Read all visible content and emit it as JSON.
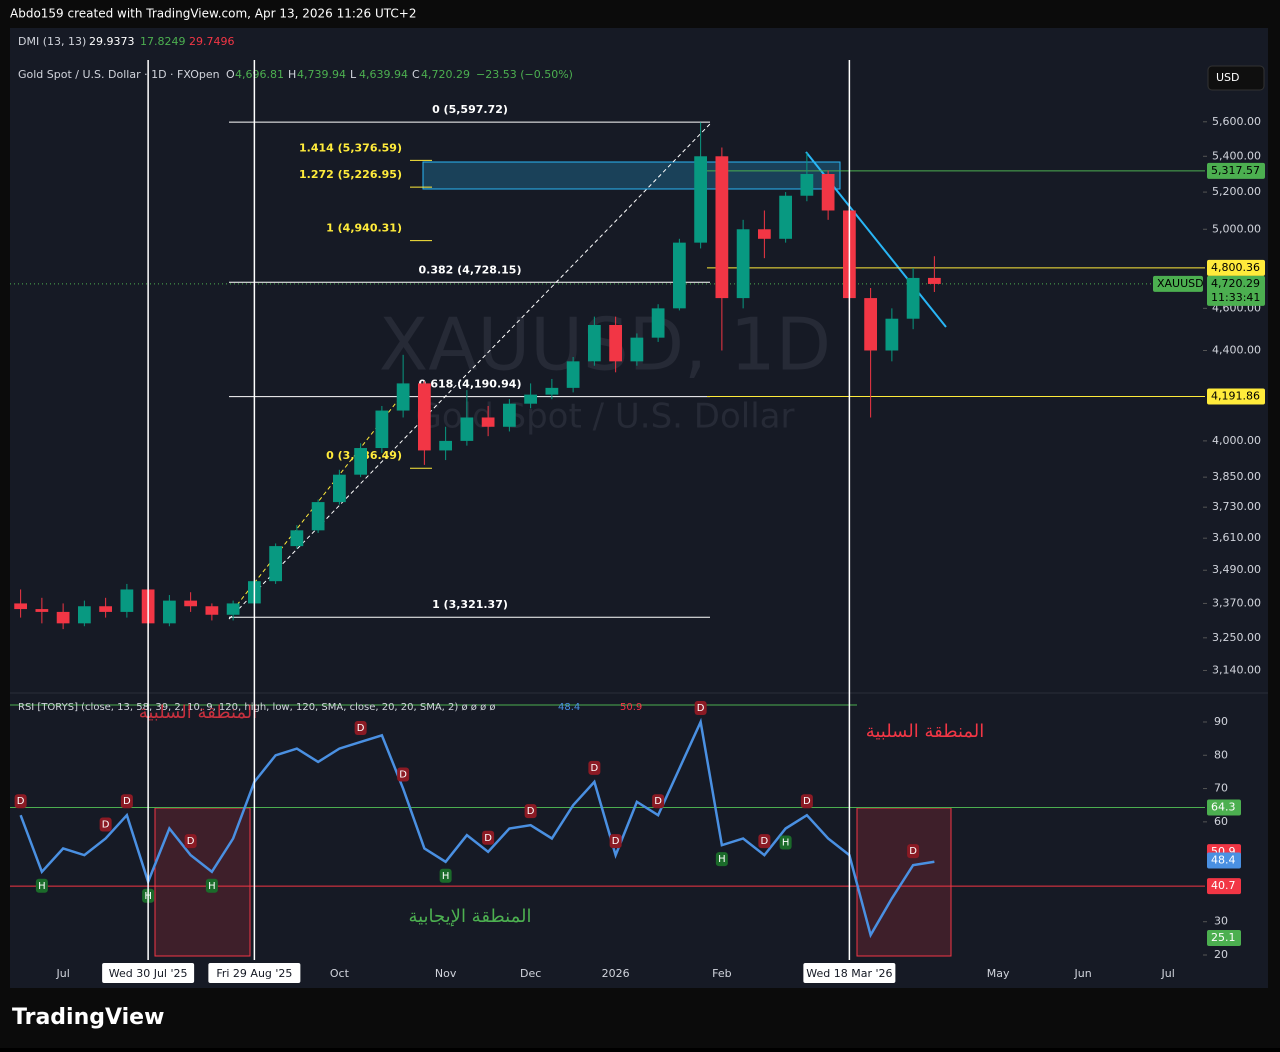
{
  "header": {
    "credit": "Abdo159 created with TradingView.com, Apr 13, 2026 11:26 UTC+2",
    "dmi": {
      "name": "DMI (13, 13)",
      "values": [
        "29.9373",
        "17.8249",
        "29.7496"
      ]
    },
    "symbol": "Gold Spot / U.S. Dollar · 1D · FXOpen",
    "ohlc": [
      {
        "k": "O",
        "v": "4,696.81"
      },
      {
        "k": "H",
        "v": "4,739.94"
      },
      {
        "k": "L",
        "v": "4,639.94"
      },
      {
        "k": "C",
        "v": "4,720.29"
      }
    ],
    "change": "−23.53 (−0.50%)",
    "currency": "USD",
    "watermark": "XAUUSD, 1D",
    "watermark_sub": "Gold Spot / U.S. Dollar"
  },
  "footer": {
    "logo": "TradingView"
  },
  "chart_data": [
    {
      "type": "candlestick",
      "log_scale": true,
      "up_color": "#089981",
      "down_color": "#f23645",
      "categories": [
        null,
        null,
        "Jul",
        null,
        null,
        null,
        "Wed 30 Jul '25",
        null,
        null,
        null,
        null,
        "Fri 29 Aug '25",
        null,
        null,
        null,
        "Oct",
        null,
        null,
        null,
        null,
        "Nov",
        null,
        null,
        null,
        "Dec",
        null,
        null,
        null,
        "2026",
        null,
        null,
        null,
        null,
        "Feb",
        null,
        null,
        null,
        null,
        null,
        "Wed 18 Mar '26",
        null,
        null,
        null,
        null,
        null,
        null,
        "May",
        null,
        null,
        null,
        "Jun",
        null,
        null,
        null,
        "Jul",
        null
      ],
      "open": [
        3370,
        3350,
        3340,
        3300,
        3360,
        3340,
        3420,
        3300,
        3380,
        3360,
        3330,
        3370,
        3450,
        3580,
        3640,
        3750,
        3860,
        3970,
        4130,
        4250,
        3960,
        4000,
        4100,
        4060,
        4160,
        4200,
        4230,
        4350,
        4520,
        4350,
        4460,
        4600,
        4930,
        5400,
        4650,
        5000,
        4950,
        5180,
        5300,
        5100,
        4650,
        4400,
        4550,
        4750,
        null,
        null,
        null,
        null,
        null,
        null,
        null,
        null,
        null,
        null,
        null,
        null
      ],
      "high": [
        3420,
        3390,
        3370,
        3380,
        3390,
        3440,
        3430,
        3400,
        3410,
        3370,
        3380,
        3460,
        3590,
        3660,
        3760,
        3880,
        3990,
        4150,
        4380,
        4260,
        4060,
        4220,
        4150,
        4180,
        4250,
        4270,
        4370,
        4560,
        4560,
        4480,
        4620,
        4950,
        5597,
        5450,
        5050,
        5100,
        5200,
        5420,
        5320,
        5150,
        4700,
        4600,
        4800,
        4860,
        null,
        null,
        null,
        null,
        null,
        null,
        null,
        null,
        null,
        null,
        null,
        null
      ],
      "low": [
        3320,
        3300,
        3280,
        3290,
        3320,
        3320,
        3270,
        3290,
        3340,
        3310,
        3310,
        3360,
        3440,
        3570,
        3630,
        3740,
        3850,
        3950,
        4100,
        3900,
        3920,
        3980,
        4020,
        4040,
        4140,
        4180,
        4210,
        4330,
        4300,
        4330,
        4440,
        4590,
        4900,
        4400,
        4600,
        4850,
        4930,
        5150,
        5050,
        4600,
        4100,
        4350,
        4500,
        4680,
        null,
        null,
        null,
        null,
        null,
        null,
        null,
        null,
        null,
        null,
        null,
        null
      ],
      "close": [
        3350,
        3340,
        3300,
        3360,
        3340,
        3420,
        3300,
        3380,
        3360,
        3330,
        3370,
        3450,
        3580,
        3640,
        3750,
        3860,
        3970,
        4130,
        4250,
        3960,
        4000,
        4100,
        4060,
        4160,
        4200,
        4230,
        4350,
        4520,
        4350,
        4460,
        4600,
        4930,
        5400,
        4650,
        5000,
        4950,
        5180,
        5300,
        5100,
        4650,
        4400,
        4550,
        4750,
        4720,
        null,
        null,
        null,
        null,
        null,
        null,
        null,
        null,
        null,
        null,
        null,
        null
      ],
      "ylim": [
        3076,
        5977
      ],
      "yticks": [
        {
          "value": 5600,
          "label": "5,600.00"
        },
        {
          "value": 5400,
          "label": "5,400.00"
        },
        {
          "value": 5200,
          "label": "5,200.00"
        },
        {
          "value": 5000,
          "label": "5,000.00"
        },
        {
          "value": 4600,
          "label": "4,600.00"
        },
        {
          "value": 4400,
          "label": "4,400.00"
        },
        {
          "value": 4000,
          "label": "4,000.00"
        },
        {
          "value": 3850,
          "label": "3,850.00"
        },
        {
          "value": 3730,
          "label": "3,730.00"
        },
        {
          "value": 3610,
          "label": "3,610.00"
        },
        {
          "value": 3490,
          "label": "3,490.00"
        },
        {
          "value": 3370,
          "label": "3,370.00"
        },
        {
          "value": 3250,
          "label": "3,250.00"
        },
        {
          "value": 3140,
          "label": "3,140.00"
        }
      ],
      "fib_sets": [
        {
          "color": "#ffffff",
          "levels": [
            {
              "label": "0 (5,597.72)",
              "value": 5597.72
            },
            {
              "label": "0.382 (4,728.15)",
              "value": 4728.15
            },
            {
              "label": "0.618 (4,190.94)",
              "value": 4190.94
            },
            {
              "label": "1 (3,321.37)",
              "value": 3321.37
            }
          ]
        },
        {
          "color": "#ffeb3b",
          "levels": [
            {
              "label": "1.414 (5,376.59)",
              "value": 5376.59
            },
            {
              "label": "1.272 (5,226.95)",
              "value": 5226.95
            },
            {
              "label": "1 (4,940.31)",
              "value": 4940.31
            },
            {
              "label": "0 (3,886.49)",
              "value": 3886.49
            }
          ]
        }
      ],
      "price_lines": [
        {
          "label": "5,317.57",
          "value": 5317.57,
          "color": "#4caf50"
        },
        {
          "label": "4,800.36",
          "value": 4800.36,
          "color": "#ffeb3b"
        },
        {
          "label": "4,191.86",
          "value": 4191.86,
          "color": "#ffeb3b"
        }
      ],
      "last": {
        "name": "XAUUSD",
        "label": "4,720.29",
        "value": 4720.29,
        "countdown": "11:33:41",
        "color": "#4caf50"
      }
    },
    {
      "type": "line",
      "title": "RSI [TORYS] (close, 13, 58, 39, 2, 10, 9, 120, high, low, 120, SMA, close, 20, 20, SMA, 2)  ø ø ø ø",
      "color": "#4a90e2",
      "values": [
        62,
        45,
        52,
        50,
        55,
        62,
        42,
        58,
        50,
        45,
        55,
        72,
        80,
        82,
        78,
        82,
        84,
        86,
        70,
        52,
        48,
        56,
        51,
        58,
        59,
        55,
        65,
        72,
        50,
        66,
        62,
        76,
        90,
        53,
        55,
        50,
        58,
        62,
        55,
        50,
        26,
        37,
        47,
        48,
        null,
        null,
        null,
        null,
        null,
        null,
        null,
        null,
        null,
        null,
        null,
        null
      ],
      "signals": [
        "D",
        "H",
        null,
        null,
        "D",
        "D",
        "H",
        null,
        "D",
        "H",
        null,
        null,
        null,
        null,
        null,
        null,
        "D",
        null,
        "D",
        null,
        "H",
        null,
        "D",
        null,
        "D",
        null,
        null,
        "D",
        "D",
        null,
        "D",
        null,
        "D",
        "H",
        null,
        "D",
        "H",
        "D",
        null,
        null,
        null,
        null,
        "D",
        null,
        null,
        null,
        null,
        null,
        null,
        null,
        null,
        null,
        null,
        null,
        null,
        null
      ],
      "ylim": [
        18.5,
        95.1
      ],
      "yticks": [
        20,
        30,
        60,
        70,
        80,
        90
      ],
      "axis_labels": [
        {
          "value": 64.3,
          "color": "#4caf50",
          "line": true
        },
        {
          "value": 50.9,
          "color": "#f23645",
          "line": false
        },
        {
          "value": 48.4,
          "color": "#4a90e2",
          "line": false
        },
        {
          "value": 40.7,
          "color": "#f23645",
          "line": true
        },
        {
          "value": 25.1,
          "color": "#4caf50",
          "line": false
        }
      ],
      "annotations": [
        "المنطقة السلبية",
        "المنطقة السلبية",
        "المنطقة الإيجابية"
      ]
    }
  ]
}
